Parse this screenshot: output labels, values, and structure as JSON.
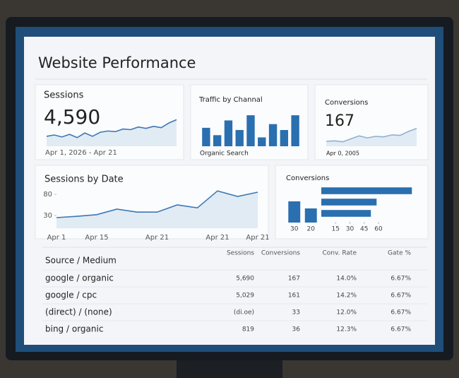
{
  "title": "Website Performance",
  "cards": [
    {
      "label": "Sessions",
      "value": "4,590",
      "range": "Apr 1, 2026 - Apr 21"
    },
    {
      "label": "Conversions",
      "value": "167",
      "range": "Apr 0, 2005"
    }
  ],
  "chart_data": [
    {
      "type": "line",
      "color": "#3b78b5",
      "values": [
        30,
        34,
        28,
        36,
        26,
        40,
        30,
        42,
        46,
        44,
        52,
        50,
        58,
        54,
        60,
        56,
        70,
        80
      ],
      "ylim": [
        0,
        100
      ]
    },
    {
      "type": "bar",
      "title": "Traffic by Channal",
      "x_label": "Organic Search",
      "color": "#2a6fb0",
      "values": [
        25,
        15,
        35,
        22,
        42,
        12,
        30,
        22,
        42
      ],
      "ylim": [
        0,
        45
      ]
    },
    {
      "type": "line",
      "color": "#8fb0d2",
      "values": [
        20,
        22,
        18,
        30,
        42,
        34,
        40,
        38,
        46,
        44,
        60,
        72
      ],
      "ylim": [
        0,
        100
      ]
    },
    {
      "type": "line",
      "title": "Sessions by Date",
      "color": "#3b78b5",
      "categories": [
        "Apr 1",
        null,
        "Apr 15",
        null,
        null,
        "Apr 21",
        null,
        null,
        "Apr 21",
        null,
        "Apr 21"
      ],
      "values": [
        25,
        28,
        32,
        45,
        38,
        38,
        55,
        48,
        88,
        75,
        85
      ],
      "ylim": [
        0,
        95
      ],
      "yticks": [
        30,
        80
      ]
    },
    {
      "type": "bar",
      "title": "Conversions",
      "color": "#2a6fb0",
      "categories": [
        "30",
        "20"
      ],
      "values": [
        30,
        20
      ],
      "ylim": [
        0,
        35
      ]
    },
    {
      "type": "barh",
      "color": "#2a6fb0",
      "values": [
        95,
        58,
        52
      ],
      "xlim": [
        0,
        100
      ],
      "xticks": [
        15,
        30,
        45,
        60
      ]
    }
  ],
  "table": {
    "headers": [
      "Source / Medium",
      "Sessions",
      "Conversions",
      "Conv. Rate",
      "Gate %"
    ],
    "rows": [
      [
        "google / organic",
        "5,690",
        "167",
        "14.0%",
        "6.67%"
      ],
      [
        "google / cpc",
        "5,029",
        "161",
        "14.2%",
        "6.67%"
      ],
      [
        "(direct) / (none)",
        "(di.oe)",
        "33",
        "12.0%",
        "6.67%"
      ],
      [
        "bing / organic",
        "819",
        "36",
        "12.3%",
        "6.67%"
      ]
    ]
  }
}
